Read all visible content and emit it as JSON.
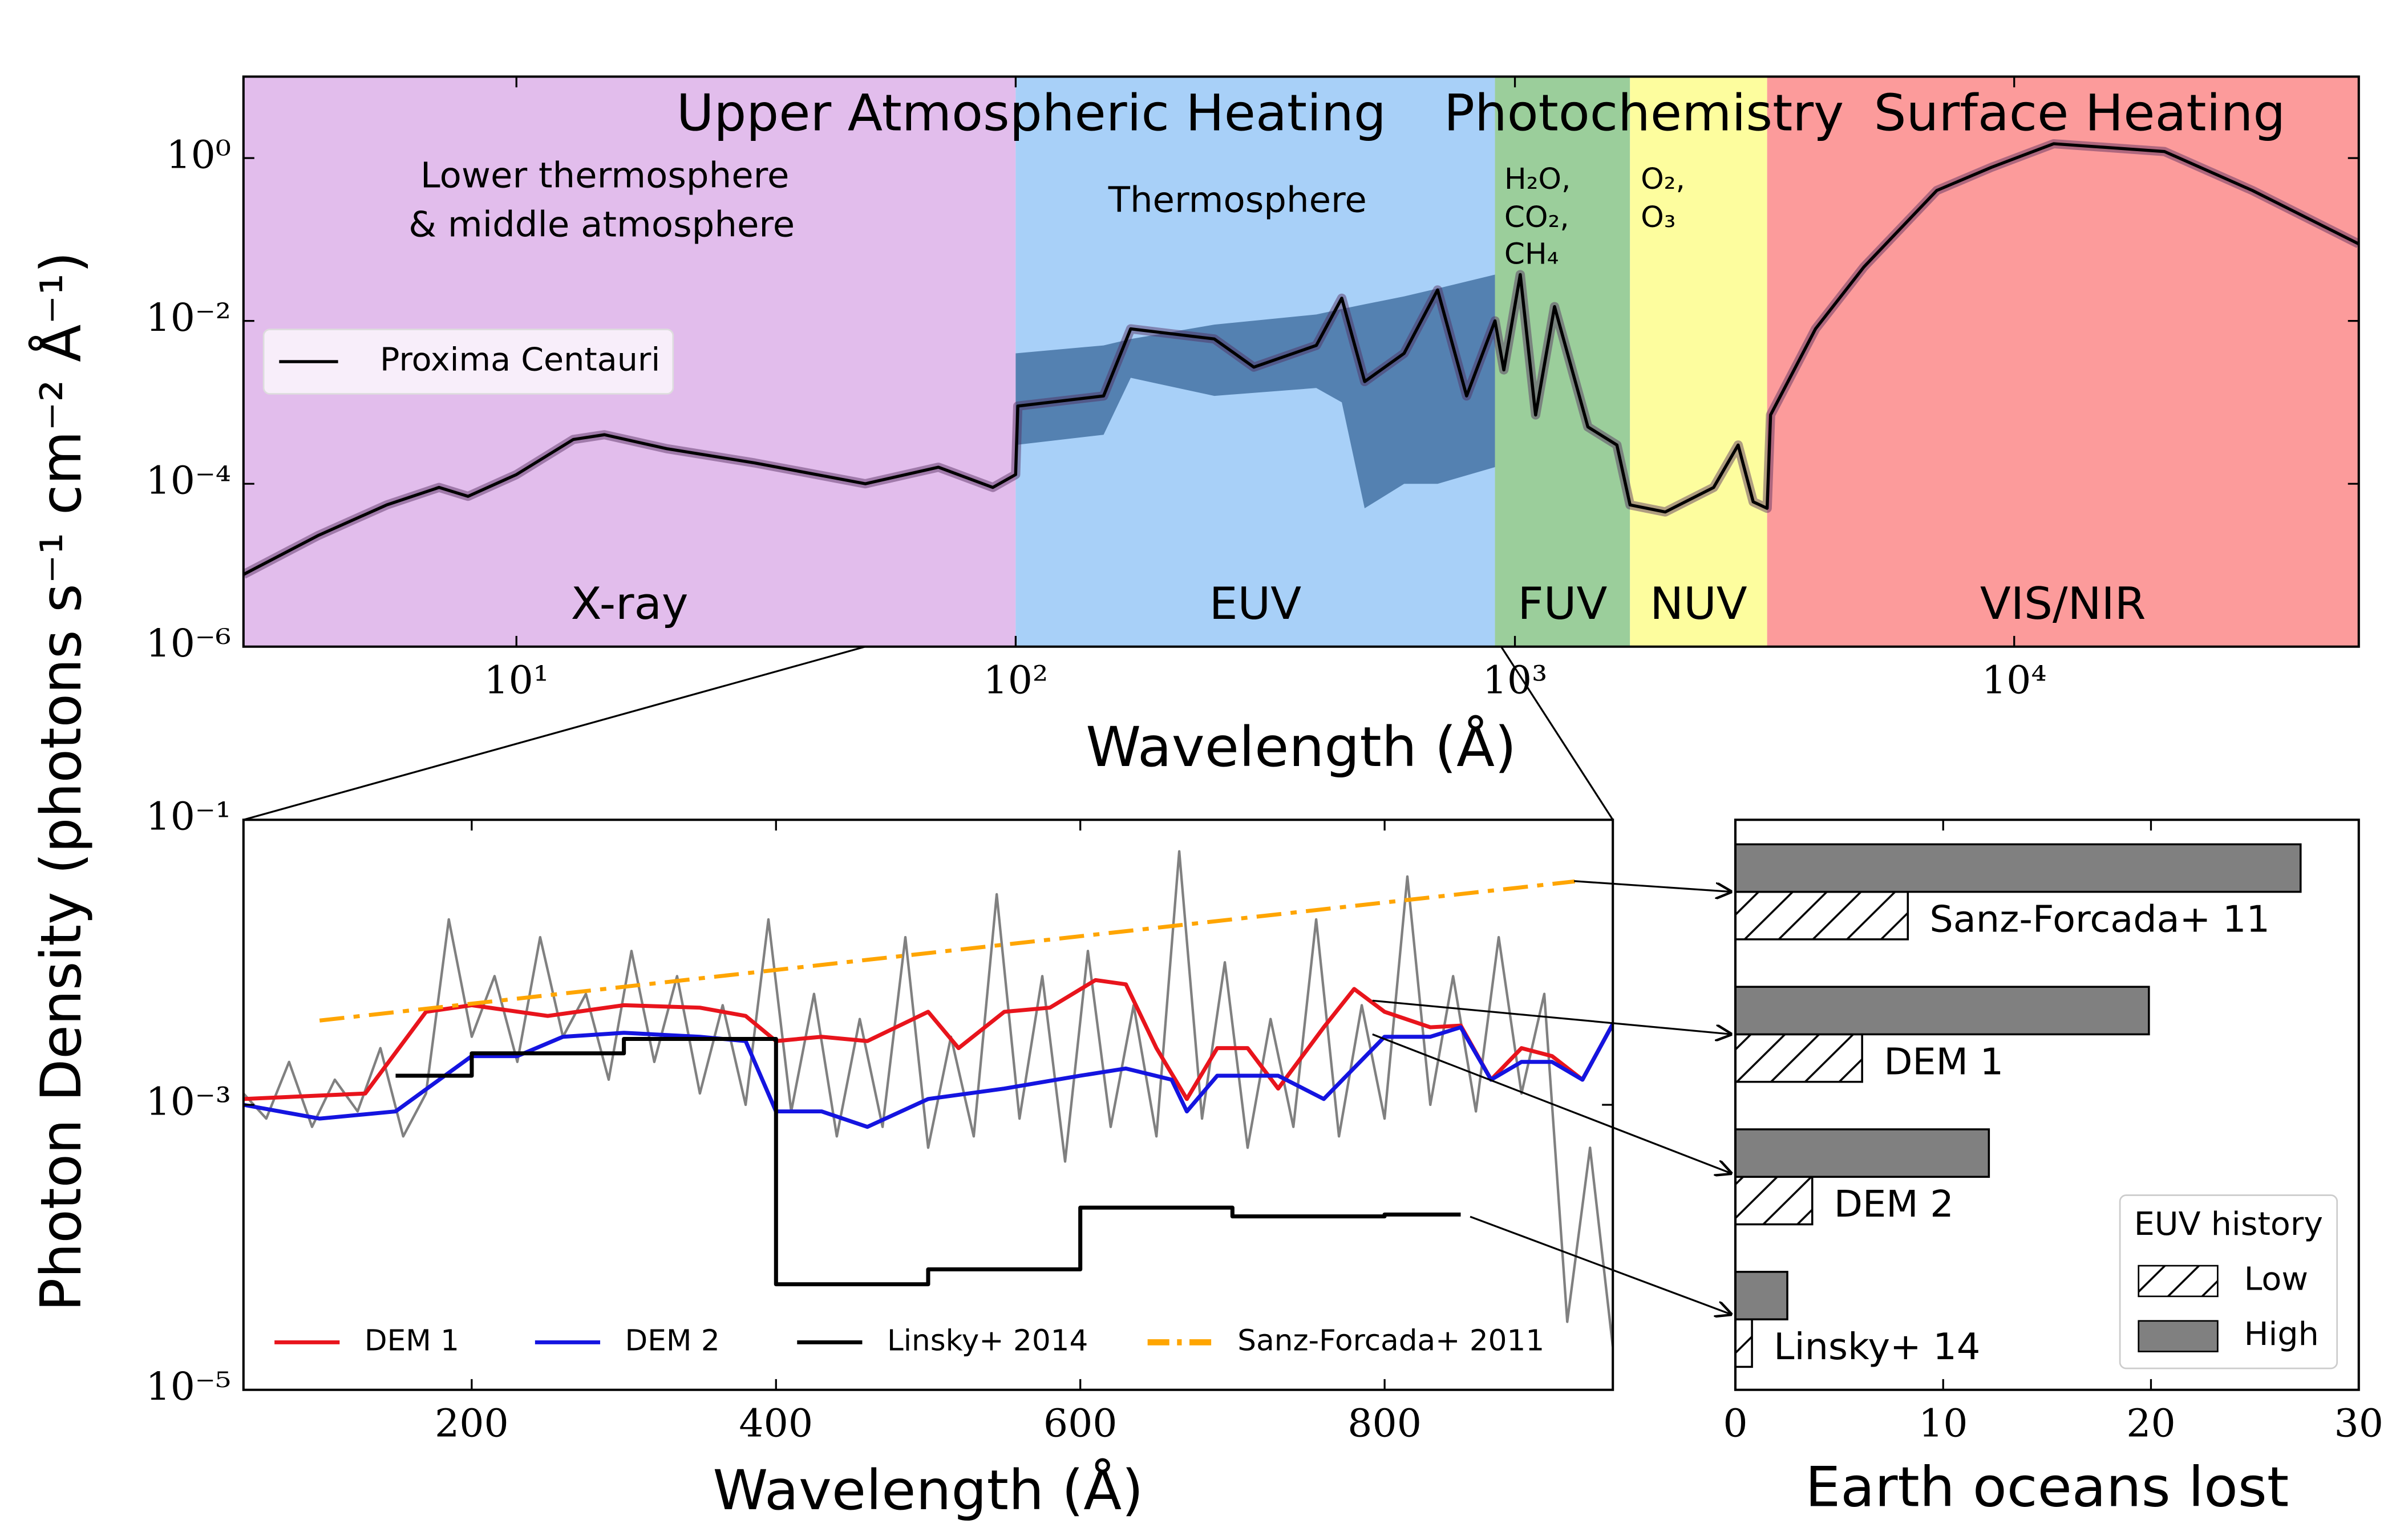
{
  "chart_data": [
    {
      "type": "line",
      "xlabel": "Wavelength (Å)",
      "ylabel": "Photon Density (photons s⁻¹ cm⁻² Å⁻¹)",
      "xscale": "log",
      "yscale": "log",
      "xlim": [
        2.84,
        49000
      ],
      "ylim": [
        1e-06,
        10
      ],
      "xticks": [
        {
          "value": 10,
          "label": "10¹"
        },
        {
          "value": 100,
          "label": "10²"
        },
        {
          "value": 1000,
          "label": "10³"
        },
        {
          "value": 10000,
          "label": "10⁴"
        }
      ],
      "yticks": [
        {
          "value": 1e-06,
          "label": "10⁻⁶"
        },
        {
          "value": 0.0001,
          "label": "10⁻⁴"
        },
        {
          "value": 0.01,
          "label": "10⁻²"
        },
        {
          "value": 1,
          "label": "10⁰"
        }
      ],
      "headers": [
        "Upper Atmospheric Heating",
        "Photochemistry",
        "Surface Heating"
      ],
      "annotations": [
        "Lower thermosphere",
        "& middle atmosphere",
        "Thermosphere"
      ],
      "molecules": [
        "H₂O,",
        "CO₂,",
        "CH₄",
        "O₂,",
        "O₃"
      ],
      "regions": [
        {
          "name": "X-ray",
          "range": [
            2.84,
            100
          ],
          "color": "#e2bdec"
        },
        {
          "name": "EUV",
          "range": [
            100,
            912
          ],
          "color": "#a8d0f8"
        },
        {
          "name": "FUV",
          "range": [
            912,
            1700
          ],
          "color": "#9bce9b"
        },
        {
          "name": "NUV",
          "range": [
            1700,
            3200
          ],
          "color": "#fdfd9e"
        },
        {
          "name": "VIS/NIR",
          "range": [
            3200,
            49000
          ],
          "color": "#fc9b9b"
        }
      ],
      "legend": "upper left",
      "band": {
        "color": "#4a78a8",
        "x": [
          100,
          150,
          170,
          250,
          400,
          450,
          500,
          600,
          700,
          912
        ],
        "upper": [
          0.004,
          0.005,
          0.006,
          0.009,
          0.012,
          0.014,
          0.016,
          0.02,
          0.025,
          0.037
        ],
        "lower": [
          0.0003,
          0.0004,
          0.002,
          0.0012,
          0.0015,
          0.001,
          5e-05,
          0.0001,
          0.0001,
          0.00016
        ]
      },
      "series": [
        {
          "name": "Proxima Centauri",
          "color": "#000000",
          "x": [
            2.84,
            4,
            5.5,
            7,
            8,
            10,
            13,
            15,
            20,
            30,
            50,
            70,
            90,
            100,
            101,
            150,
            170,
            250,
            300,
            400,
            450,
            500,
            600,
            700,
            800,
            912,
            950,
            1025,
            1100,
            1200,
            1400,
            1600,
            1700,
            2000,
            2500,
            2800,
            3000,
            3200,
            3250,
            4000,
            5000,
            7000,
            9000,
            12000,
            20000,
            30000,
            49000
          ],
          "values": [
            7.7e-06,
            2.3e-05,
            5.5e-05,
            9e-05,
            7e-05,
            0.00013,
            0.00035,
            0.0004,
            0.00027,
            0.00018,
            0.0001,
            0.00016,
            9e-05,
            0.00013,
            0.0009,
            0.0012,
            0.008,
            0.006,
            0.0027,
            0.005,
            0.019,
            0.0018,
            0.004,
            0.024,
            0.0012,
            0.01,
            0.0025,
            0.037,
            0.0007,
            0.015,
            0.0005,
            0.0003,
            5.5e-05,
            4.5e-05,
            9e-05,
            0.0003,
            6e-05,
            5e-05,
            0.0007,
            0.008,
            0.046,
            0.4,
            0.77,
            1.5,
            1.2,
            0.4,
            0.088
          ]
        }
      ]
    },
    {
      "type": "line",
      "xlabel": "Wavelength (Å)",
      "xscale": "linear",
      "yscale": "log",
      "xlim": [
        50,
        950
      ],
      "ylim": [
        1e-05,
        0.1
      ],
      "xticks": [
        200,
        400,
        600,
        800
      ],
      "yticks": [
        {
          "value": 1e-05,
          "label": "10⁻⁵"
        },
        {
          "value": 0.001,
          "label": "10⁻³"
        },
        {
          "value": 0.1,
          "label": "10⁻¹"
        }
      ],
      "legend": "lower center",
      "series": [
        {
          "color": "#808080",
          "x": [
            50,
            65,
            80,
            95,
            110,
            125,
            140,
            155,
            170,
            185,
            200,
            215,
            230,
            245,
            260,
            275,
            290,
            305,
            320,
            335,
            350,
            365,
            380,
            395,
            410,
            425,
            440,
            455,
            470,
            485,
            500,
            515,
            530,
            545,
            560,
            575,
            590,
            605,
            620,
            635,
            650,
            665,
            680,
            695,
            710,
            725,
            740,
            755,
            770,
            785,
            800,
            815,
            830,
            845,
            860,
            875,
            890,
            905,
            920,
            935,
            950
          ],
          "values": [
            0.0012,
            0.0008,
            0.002,
            0.0007,
            0.0015,
            0.0009,
            0.0025,
            0.0006,
            0.0012,
            0.02,
            0.003,
            0.008,
            0.002,
            0.015,
            0.003,
            0.006,
            0.0015,
            0.012,
            0.002,
            0.008,
            0.0012,
            0.005,
            0.001,
            0.02,
            0.0009,
            0.006,
            0.0006,
            0.004,
            0.0007,
            0.015,
            0.0005,
            0.003,
            0.0006,
            0.03,
            0.0008,
            0.008,
            0.0004,
            0.012,
            0.0007,
            0.005,
            0.0006,
            0.06,
            0.0008,
            0.01,
            0.0005,
            0.004,
            0.0007,
            0.02,
            0.0006,
            0.005,
            0.0008,
            0.04,
            0.001,
            0.008,
            0.0009,
            0.015,
            0.0012,
            0.006,
            3e-05,
            0.0005,
            2e-05
          ]
        },
        {
          "name": "DEM 1",
          "color": "#e8141c",
          "x": [
            50,
            130,
            170,
            200,
            250,
            300,
            350,
            380,
            400,
            430,
            460,
            500,
            520,
            550,
            580,
            610,
            630,
            650,
            670,
            690,
            710,
            730,
            760,
            780,
            800,
            830,
            850,
            870,
            890,
            910,
            930,
            950
          ],
          "values": [
            0.0011,
            0.0012,
            0.0045,
            0.005,
            0.0042,
            0.005,
            0.0048,
            0.0042,
            0.0028,
            0.003,
            0.0028,
            0.0045,
            0.0025,
            0.0045,
            0.0048,
            0.0075,
            0.007,
            0.0025,
            0.0011,
            0.0025,
            0.0025,
            0.0013,
            0.0035,
            0.0065,
            0.0045,
            0.0035,
            0.0036,
            0.0015,
            0.0025,
            0.0022,
            0.0015,
            0.0037
          ]
        },
        {
          "name": "DEM 2",
          "color": "#1414e0",
          "x": [
            50,
            100,
            150,
            200,
            230,
            260,
            300,
            350,
            380,
            400,
            430,
            460,
            500,
            550,
            600,
            630,
            660,
            670,
            690,
            730,
            760,
            800,
            830,
            850,
            870,
            890,
            910,
            930,
            950
          ],
          "values": [
            0.001,
            0.0008,
            0.0009,
            0.0022,
            0.0022,
            0.003,
            0.0032,
            0.003,
            0.0028,
            0.0009,
            0.0009,
            0.0007,
            0.0011,
            0.0013,
            0.0016,
            0.0018,
            0.0015,
            0.0009,
            0.0016,
            0.0016,
            0.0011,
            0.003,
            0.003,
            0.0035,
            0.0015,
            0.002,
            0.002,
            0.0015,
            0.0037
          ]
        },
        {
          "name": "Linsky+ 2014",
          "color": "#000000",
          "x": [
            150,
            200,
            200,
            300,
            300,
            400,
            400,
            500,
            500,
            600,
            600,
            700,
            700,
            800,
            800,
            850
          ],
          "values": [
            0.0016,
            0.0016,
            0.0023,
            0.0023,
            0.0029,
            0.0029,
            5.5e-05,
            5.5e-05,
            7e-05,
            7e-05,
            0.00019,
            0.00019,
            0.000165,
            0.000165,
            0.00017,
            0.00017
          ]
        },
        {
          "name": "Sanz-Forcada+ 2011",
          "color": "#ffa500",
          "dash": "dashdot",
          "x": [
            100,
            925
          ],
          "values": [
            0.0039,
            0.037
          ]
        }
      ]
    },
    {
      "type": "barh",
      "xlabel": "Earth oceans lost",
      "xlim": [
        0,
        30
      ],
      "xticks": [
        0,
        10,
        20,
        30
      ],
      "categories": [
        "Sanz-Forcada+ 11",
        "DEM 1",
        "DEM 2",
        "Linsky+ 14"
      ],
      "category_colors": [
        "#ffa500",
        "#e8141c",
        "#1414e0",
        "#000000"
      ],
      "legend_title": "EUV history",
      "legend": "lower right",
      "series": [
        {
          "name": "Low",
          "color": "#ffffff",
          "hatch": "/",
          "values": [
            8.3,
            6.1,
            3.7,
            0.8
          ]
        },
        {
          "name": "High",
          "color": "#808080",
          "values": [
            27.2,
            19.9,
            12.2,
            2.5
          ]
        }
      ]
    }
  ]
}
